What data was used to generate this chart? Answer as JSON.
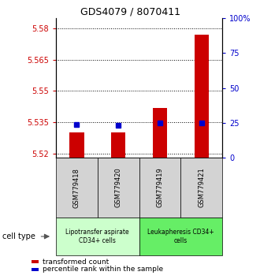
{
  "title": "GDS4079 / 8070411",
  "samples": [
    "GSM779418",
    "GSM779420",
    "GSM779419",
    "GSM779421"
  ],
  "transformed_count": [
    5.53,
    5.53,
    5.542,
    5.577
  ],
  "percentile_rank": [
    24,
    23,
    25,
    25
  ],
  "ylim_left": [
    5.518,
    5.585
  ],
  "ylim_right": [
    0,
    100
  ],
  "left_ticks": [
    5.52,
    5.535,
    5.55,
    5.565,
    5.58
  ],
  "right_ticks": [
    0,
    25,
    50,
    75,
    100
  ],
  "right_tick_labels": [
    "0",
    "25",
    "50",
    "75",
    "100%"
  ],
  "cell_type_groups": [
    {
      "label": "Lipotransfer aspirate\nCD34+ cells",
      "color": "#ccffcc",
      "samples": [
        0,
        1
      ]
    },
    {
      "label": "Leukapheresis CD34+\ncells",
      "color": "#66ee66",
      "samples": [
        2,
        3
      ]
    }
  ],
  "bar_color": "#cc0000",
  "dot_color": "#0000cc",
  "bar_width": 0.35,
  "background_color": "#ffffff",
  "left_label_color": "#cc0000",
  "right_label_color": "#0000cc",
  "cell_type_label": "cell type",
  "legend_items": [
    {
      "color": "#cc0000",
      "label": "transformed count"
    },
    {
      "color": "#0000cc",
      "label": "percentile rank within the sample"
    }
  ],
  "sample_box_color": "#d3d3d3",
  "fig_width": 3.3,
  "fig_height": 3.54,
  "dpi": 100
}
